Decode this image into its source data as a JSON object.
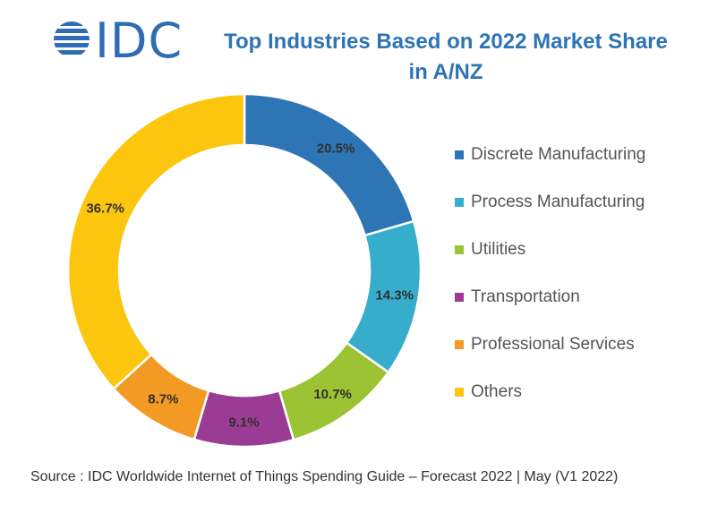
{
  "logo": {
    "text": "IDC"
  },
  "title": "Top Industries Based on 2022 Market Share in A/NZ",
  "source": "Source : IDC Worldwide Internet of Things Spending Guide – Forecast 2022 | May (V1 2022)",
  "colors": {
    "brand": "#2e6db4",
    "title": "#2e74b5"
  },
  "chart_data": {
    "type": "pie",
    "donut": true,
    "title": "Top Industries Based on 2022 Market Share in A/NZ",
    "unit": "%",
    "legend_position": "right",
    "slices": [
      {
        "name": "Discrete Manufacturing",
        "value": 20.5,
        "label": "20.5%",
        "color": "#2e75b6"
      },
      {
        "name": "Process Manufacturing",
        "value": 14.3,
        "label": "14.3%",
        "color": "#36aecb"
      },
      {
        "name": "Utilities",
        "value": 10.7,
        "label": "10.7%",
        "color": "#9bc334"
      },
      {
        "name": "Transportation",
        "value": 9.1,
        "label": "9.1%",
        "color": "#9a3c94"
      },
      {
        "name": "Professional Services",
        "value": 8.7,
        "label": "8.7%",
        "color": "#f39a25"
      },
      {
        "name": "Others",
        "value": 36.7,
        "label": "36.7%",
        "color": "#fcc60f"
      }
    ]
  }
}
